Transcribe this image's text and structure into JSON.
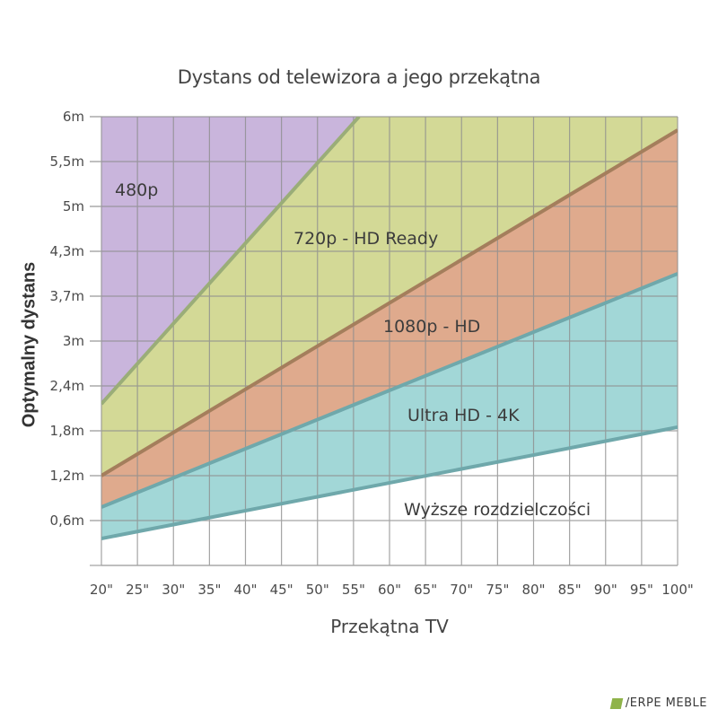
{
  "chart_data": {
    "type": "area",
    "title": "Dystans od telewizora a jego przekątna",
    "xlabel": "Przekątna TV",
    "ylabel": "Optymalny dystans",
    "x_ticks": [
      "20\"",
      "25\"",
      "30\"",
      "35\"",
      "40\"",
      "45\"",
      "50\"",
      "55\"",
      "60\"",
      "65\"",
      "70\"",
      "75\"",
      "80\"",
      "85\"",
      "90\"",
      "95\"",
      "100\""
    ],
    "x_values": [
      20,
      25,
      30,
      35,
      40,
      45,
      50,
      55,
      60,
      65,
      70,
      75,
      80,
      85,
      90,
      95,
      100
    ],
    "y_ticks": [
      "6m",
      "5,5m",
      "5m",
      "4,3m",
      "3,7m",
      "3m",
      "2,4m",
      "1,8m",
      "1,2m",
      "0,6m"
    ],
    "grid": true,
    "legend_position": "inline",
    "colors": {
      "480p": "#c9b5dc",
      "720p": "#d3d996",
      "1080p": "#dfaa8d",
      "4k": "#a2d7d7",
      "higher": "#ffffff",
      "line_480_720": "#9aad78",
      "line_720_1080": "#a47e5c",
      "line_1080_4k": "#6fa8ab",
      "line_4k_higher": "#6fa8ab",
      "grid": "#8e8e8e"
    },
    "series": [
      {
        "name": "480p / 720p boundary",
        "x": [
          20,
          55.8
        ],
        "y_tick_position": [
          3.6,
          10.0
        ]
      },
      {
        "name": "720p / 1080p boundary",
        "x": [
          20,
          100
        ],
        "y_tick_position": [
          2.0,
          9.7
        ]
      },
      {
        "name": "1080p / Ultra HD boundary",
        "x": [
          20,
          100
        ],
        "y_tick_position": [
          1.3,
          6.5
        ]
      },
      {
        "name": "Ultra HD / higher boundary",
        "x": [
          20,
          100
        ],
        "y_tick_position": [
          0.6,
          3.08
        ]
      }
    ],
    "regions": [
      {
        "name": "480p",
        "label": "480p"
      },
      {
        "name": "720p",
        "label": "720p - HD Ready"
      },
      {
        "name": "1080p",
        "label": "1080p - HD"
      },
      {
        "name": "4k",
        "label": "Ultra HD - 4K"
      },
      {
        "name": "higher",
        "label": "Wyższe rozdzielczości"
      }
    ]
  },
  "logo": {
    "text": "/ERPE MEBLE"
  }
}
